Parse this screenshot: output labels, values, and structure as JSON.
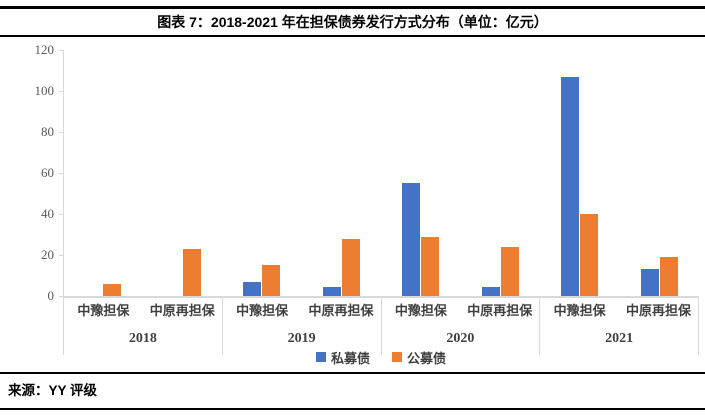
{
  "header": {
    "title": "图表 7：2018-2021 年在担保债券发行方式分布（单位：亿元）"
  },
  "footer": {
    "source": "来源：YY 评级"
  },
  "colors": {
    "private_bond_blue": "#4472C4",
    "public_bond_orange": "#ED7D31",
    "axis_gray": "#d9d9d9",
    "tick_text_gray": "#595959",
    "label_text_gray": "#404040"
  },
  "chart_data": {
    "type": "bar",
    "title": "图表 7：2018-2021 年在担保债券发行方式分布（单位：亿元）",
    "unit": "亿元",
    "ylim": [
      0,
      120
    ],
    "yticks": [
      0,
      20,
      40,
      60,
      80,
      100,
      120
    ],
    "grid": false,
    "legend_position": "bottom",
    "series_names": [
      "私募债",
      "公募债"
    ],
    "series_colors": [
      "#4472C4",
      "#ED7D31"
    ],
    "groups": [
      {
        "label": "2018",
        "categories": [
          "中豫担保",
          "中原再担保"
        ],
        "series": [
          {
            "name": "私募债",
            "values": [
              0,
              0
            ]
          },
          {
            "name": "公募债",
            "values": [
              6,
              23
            ]
          }
        ]
      },
      {
        "label": "2019",
        "categories": [
          "中豫担保",
          "中原再担保"
        ],
        "series": [
          {
            "name": "私募债",
            "values": [
              7,
              4.5
            ]
          },
          {
            "name": "公募债",
            "values": [
              15,
              28
            ]
          }
        ]
      },
      {
        "label": "2020",
        "categories": [
          "中豫担保",
          "中原再担保"
        ],
        "series": [
          {
            "name": "私募债",
            "values": [
              55,
              4.5
            ]
          },
          {
            "name": "公募债",
            "values": [
              29,
              24
            ]
          }
        ]
      },
      {
        "label": "2021",
        "categories": [
          "中豫担保",
          "中原再担保"
        ],
        "series": [
          {
            "name": "私募债",
            "values": [
              107,
              13
            ]
          },
          {
            "name": "公募债",
            "values": [
              40,
              19
            ]
          }
        ]
      }
    ]
  }
}
